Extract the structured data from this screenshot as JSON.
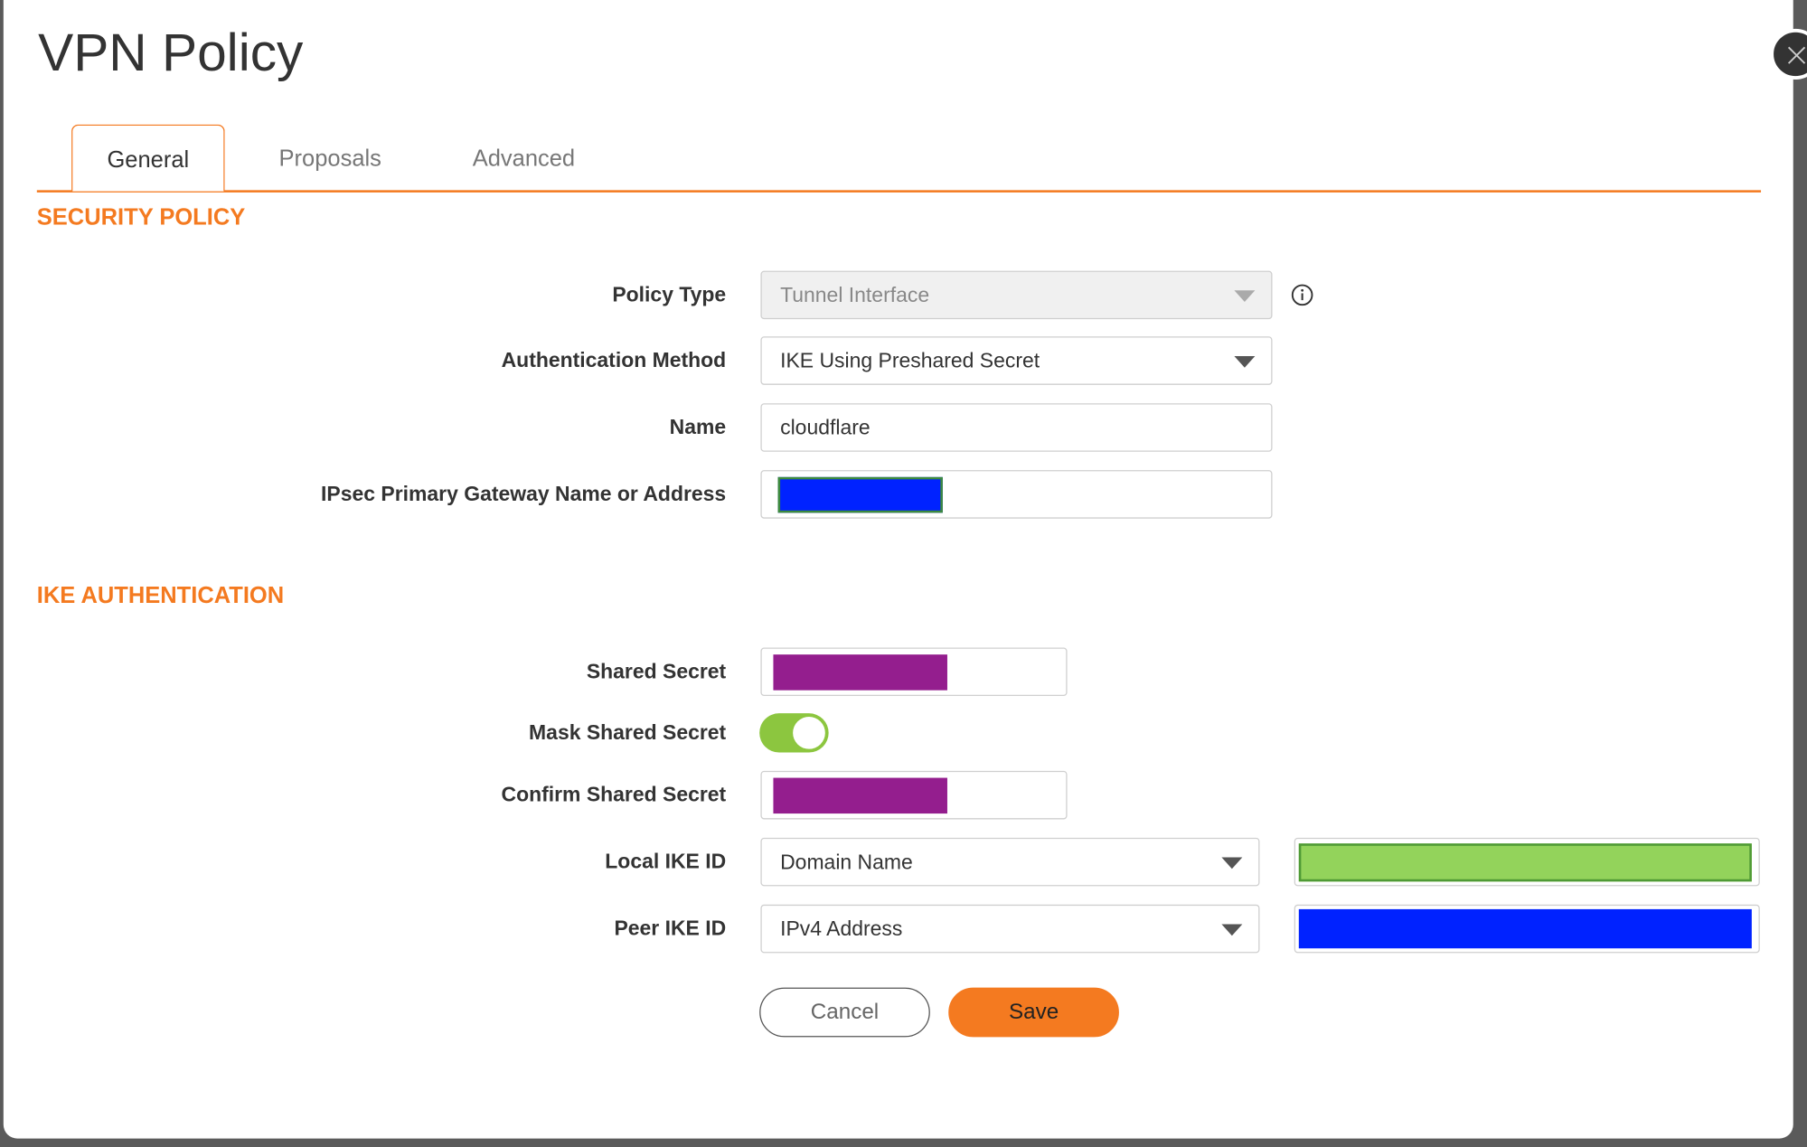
{
  "dialog": {
    "title": "VPN Policy"
  },
  "tabs": [
    {
      "label": "General",
      "active": true
    },
    {
      "label": "Proposals"
    },
    {
      "label": "Advanced"
    }
  ],
  "security_policy": {
    "heading": "SECURITY POLICY",
    "policy_type": {
      "label": "Policy Type",
      "value": "Tunnel Interface"
    },
    "auth_method": {
      "label": "Authentication Method",
      "value": "IKE Using Preshared Secret"
    },
    "name": {
      "label": "Name",
      "value": "cloudflare"
    },
    "gateway": {
      "label": "IPsec Primary Gateway Name or Address"
    }
  },
  "ike_auth": {
    "heading": "IKE AUTHENTICATION",
    "shared_secret": {
      "label": "Shared Secret"
    },
    "mask_shared_secret": {
      "label": "Mask Shared Secret",
      "on": true
    },
    "confirm_shared_secret": {
      "label": "Confirm Shared Secret"
    },
    "local_ike_id": {
      "label": "Local IKE ID",
      "type": "Domain Name"
    },
    "peer_ike_id": {
      "label": "Peer IKE ID",
      "type": "IPv4 Address"
    }
  },
  "buttons": {
    "cancel": "Cancel",
    "save": "Save"
  },
  "colors": {
    "accent": "#f47a20",
    "toggle_on": "#8cc63f",
    "redact_blue": "#0022ff",
    "redact_purple": "#941e8e",
    "redact_green": "#93d35b"
  }
}
